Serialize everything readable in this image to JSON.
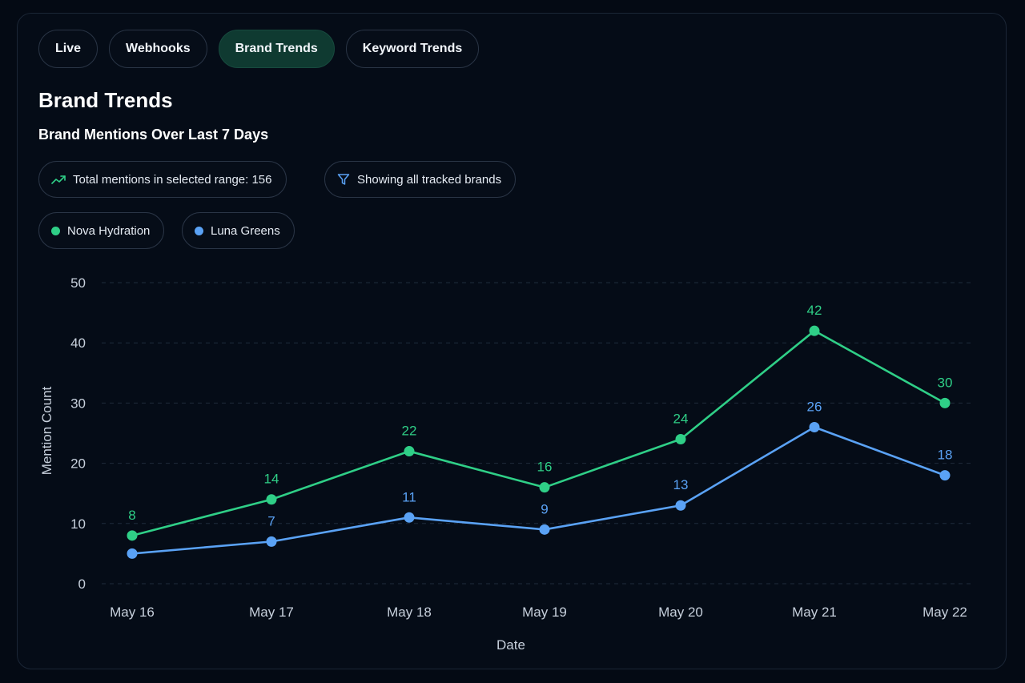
{
  "tabs": [
    {
      "label": "Live",
      "active": false
    },
    {
      "label": "Webhooks",
      "active": false
    },
    {
      "label": "Brand Trends",
      "active": true
    },
    {
      "label": "Keyword Trends",
      "active": false
    }
  ],
  "page_title": "Brand Trends",
  "summary": {
    "total_label": "Total mentions in selected range: 156",
    "total_icon": "trend-up-icon",
    "filter_label": "Showing all tracked brands",
    "filter_icon": "filter-icon"
  },
  "colors": {
    "nova": "#2fcf87",
    "luna": "#5aa2f5",
    "accent_tab": "#0f3a31"
  },
  "chart_data": {
    "type": "line",
    "title": "Brand Mentions Over Last 7 Days",
    "xlabel": "Date",
    "ylabel": "Mention Count",
    "categories": [
      "May 16",
      "May 17",
      "May 18",
      "May 19",
      "May 20",
      "May 21",
      "May 22"
    ],
    "ylim": [
      0,
      50
    ],
    "yticks": [
      0,
      10,
      20,
      30,
      40,
      50
    ],
    "grid": true,
    "legend": "top-left",
    "series": [
      {
        "name": "Nova Hydration",
        "color": "#2fcf87",
        "values": [
          8,
          14,
          22,
          16,
          24,
          42,
          30
        ]
      },
      {
        "name": "Luna Greens",
        "color": "#5aa2f5",
        "values": [
          5,
          7,
          11,
          9,
          13,
          26,
          18
        ]
      }
    ],
    "data_labels": {
      "Nova Hydration": [
        "8",
        "14",
        "22",
        "16",
        "24",
        "42",
        "30"
      ],
      "Luna Greens": [
        "",
        "7",
        "11",
        "9",
        "13",
        "26",
        "18"
      ]
    }
  }
}
